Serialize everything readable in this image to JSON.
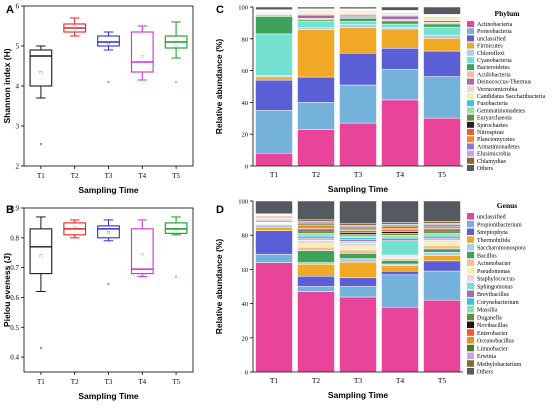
{
  "chart_data": [
    {
      "panel": "A",
      "type": "box",
      "xlabel": "Sampling Time",
      "ylabel": "Shannon index (H)",
      "ylim": [
        2,
        6
      ],
      "yticks": [
        "2",
        "3",
        "4",
        "5",
        "6"
      ],
      "categories": [
        "T1",
        "T2",
        "T3",
        "T4",
        "T5"
      ],
      "colors": [
        "#1a1a1a",
        "#e8221e",
        "#2b2fd6",
        "#d62ad6",
        "#169a26"
      ],
      "boxes": [
        {
          "min": 3.7,
          "q1": 4.0,
          "median": 4.75,
          "q3": 4.9,
          "max": 5.0,
          "mean": 4.35,
          "outliers": [
            2.55
          ]
        },
        {
          "min": 5.25,
          "q1": 5.35,
          "median": 5.45,
          "q3": 5.55,
          "max": 5.7,
          "mean": 5.5,
          "outliers": []
        },
        {
          "min": 4.9,
          "q1": 5.0,
          "median": 5.1,
          "q3": 5.25,
          "max": 5.35,
          "mean": 5.05,
          "outliers": [
            4.1
          ]
        },
        {
          "min": 4.15,
          "q1": 4.35,
          "median": 4.6,
          "q3": 5.35,
          "max": 5.5,
          "mean": 4.75,
          "outliers": []
        },
        {
          "min": 4.7,
          "q1": 4.95,
          "median": 5.1,
          "q3": 5.25,
          "max": 5.6,
          "mean": 5.0,
          "outliers": [
            4.1
          ]
        }
      ]
    },
    {
      "panel": "B",
      "type": "box",
      "xlabel": "Sampling Time",
      "ylabel": "Pielou eveness (J)",
      "ylim": [
        0.35,
        0.9
      ],
      "yticks": [
        "0.4",
        "0.5",
        "0.6",
        "0.7",
        "0.8",
        "0.9"
      ],
      "ytick_values": [
        0.4,
        0.5,
        0.6,
        0.7,
        0.8,
        0.9
      ],
      "categories": [
        "T1",
        "T2",
        "T3",
        "T4",
        "T5"
      ],
      "colors": [
        "#1a1a1a",
        "#e8221e",
        "#2b2fd6",
        "#d62ad6",
        "#169a26"
      ],
      "boxes": [
        {
          "min": 0.62,
          "q1": 0.68,
          "median": 0.77,
          "q3": 0.83,
          "max": 0.87,
          "mean": 0.74,
          "outliers": [
            0.43
          ]
        },
        {
          "min": 0.8,
          "q1": 0.81,
          "median": 0.83,
          "q3": 0.85,
          "max": 0.86,
          "mean": 0.835,
          "outliers": []
        },
        {
          "min": 0.79,
          "q1": 0.8,
          "median": 0.83,
          "q3": 0.84,
          "max": 0.86,
          "mean": 0.82,
          "outliers": [
            0.645
          ]
        },
        {
          "min": 0.67,
          "q1": 0.68,
          "median": 0.695,
          "q3": 0.83,
          "max": 0.86,
          "mean": 0.745,
          "outliers": []
        },
        {
          "min": 0.81,
          "q1": 0.815,
          "median": 0.83,
          "q3": 0.85,
          "max": 0.87,
          "mean": 0.83,
          "outliers": [
            0.67
          ]
        }
      ]
    },
    {
      "panel": "C",
      "type": "stacked-bar",
      "xlabel": "Sampling Time",
      "ylabel": "Relative abundance (%)",
      "ylim": [
        0,
        100
      ],
      "yticks": [
        "0",
        "20",
        "40",
        "60",
        "80",
        "100"
      ],
      "legend_title": "Phylum",
      "categories": [
        "T1",
        "T2",
        "T3",
        "T4",
        "T5"
      ],
      "series": [
        {
          "name": "Actinobacteria",
          "color": "#e8449a",
          "values": [
            8,
            23,
            27,
            41,
            30
          ]
        },
        {
          "name": "Proteobacteria",
          "color": "#74b2dc",
          "values": [
            27,
            17,
            24,
            19,
            26
          ]
        },
        {
          "name": "unclassified",
          "color": "#5b5fd6",
          "values": [
            19,
            16,
            20,
            13,
            16
          ]
        },
        {
          "name": "Firmicutes",
          "color": "#f0a826",
          "values": [
            2,
            30,
            16,
            12,
            8
          ]
        },
        {
          "name": "Chloroflexi",
          "color": "#a8d0ec",
          "values": [
            1,
            1,
            2,
            1,
            2
          ]
        },
        {
          "name": "Cyanobacteria",
          "color": "#74e0d0",
          "values": [
            26,
            4,
            2,
            2,
            5
          ]
        },
        {
          "name": "Bacteroidetes",
          "color": "#3ea35a",
          "values": [
            11,
            1,
            2,
            2,
            2
          ]
        },
        {
          "name": "Acidobacteria",
          "color": "#f7bc9d",
          "values": [
            1,
            1,
            1,
            1,
            1
          ]
        },
        {
          "name": "Deinococcus-Thermus",
          "color": "#a66aa8",
          "values": [
            0.5,
            2,
            1,
            2,
            1
          ]
        },
        {
          "name": "Verrucomicrobia",
          "color": "#f0d2e6",
          "values": [
            0.5,
            1,
            1,
            1,
            1
          ]
        },
        {
          "name": "Candidatus Saccharibacteria",
          "color": "#f7f1a3",
          "values": [
            0.5,
            1,
            1,
            0.5,
            1
          ]
        },
        {
          "name": "Fusobacteria",
          "color": "#3bc0e8",
          "values": [
            0.3,
            0.5,
            0.5,
            0.5,
            0.5
          ]
        },
        {
          "name": "Gemmatimonadetes",
          "color": "#8de0a6",
          "values": [
            0.3,
            0.3,
            0.3,
            0.3,
            0.3
          ]
        },
        {
          "name": "Euryarchaeota",
          "color": "#6a8a40",
          "values": [
            0.2,
            0.3,
            0.3,
            0.3,
            0.3
          ]
        },
        {
          "name": "Spirochaetes",
          "color": "#222222",
          "values": [
            0.2,
            0.2,
            0.2,
            0.2,
            0.2
          ]
        },
        {
          "name": "Nitrospirae",
          "color": "#ee5a3a",
          "values": [
            0.2,
            0.2,
            0.2,
            0.2,
            0.2
          ]
        },
        {
          "name": "Planctomycetes",
          "color": "#ee8a2a",
          "values": [
            0.2,
            0.2,
            0.2,
            0.2,
            0.2
          ]
        },
        {
          "name": "Armatimonadetes",
          "color": "#8a7ad4",
          "values": [
            0.1,
            0.1,
            0.1,
            0.1,
            0.1
          ]
        },
        {
          "name": "Elusimicrobia",
          "color": "#c4a6e4",
          "values": [
            0.1,
            0.1,
            0.1,
            0.1,
            0.1
          ]
        },
        {
          "name": "Chlamydiae",
          "color": "#8a6a2a",
          "values": [
            0.1,
            0.1,
            0.1,
            0.1,
            0.1
          ]
        },
        {
          "name": "Others",
          "color": "#555a60",
          "values": [
            1.7,
            1.1,
            1.1,
            2.1,
            4.6
          ]
        }
      ]
    },
    {
      "panel": "D",
      "type": "stacked-bar",
      "xlabel": "Sampling Time",
      "ylabel": "Relative abundance (%)",
      "ylim": [
        0,
        100
      ],
      "yticks": [
        "0",
        "20",
        "40",
        "60",
        "80",
        "100"
      ],
      "legend_title": "Genus",
      "categories": [
        "T1",
        "T2",
        "T3",
        "T4",
        "T5"
      ],
      "series": [
        {
          "name": "unclassified",
          "color": "#e8449a",
          "values": [
            65,
            47,
            43,
            36,
            42
          ]
        },
        {
          "name": "Propionibacterium",
          "color": "#74b2dc",
          "values": [
            5,
            3,
            6,
            18,
            17
          ]
        },
        {
          "name": "Streptophyta",
          "color": "#5b5fd6",
          "values": [
            14,
            6,
            5,
            2,
            6
          ]
        },
        {
          "name": "Thermobifida",
          "color": "#f0a826",
          "values": [
            2,
            7,
            9,
            3,
            3
          ]
        },
        {
          "name": "Saccharomonospora",
          "color": "#a8d0ec",
          "values": [
            1,
            1,
            2,
            1,
            2
          ]
        },
        {
          "name": "Bacillus",
          "color": "#3ea35a",
          "values": [
            0.5,
            7,
            3,
            2,
            2
          ]
        },
        {
          "name": "Acinetobacter",
          "color": "#f7bc9d",
          "values": [
            0.5,
            2,
            2,
            1,
            2
          ]
        },
        {
          "name": "Pseudomonas",
          "color": "#f7f1a3",
          "values": [
            0.5,
            2,
            2,
            1,
            2
          ]
        },
        {
          "name": "Staphylococcus",
          "color": "#f0d2e6",
          "values": [
            0.5,
            2,
            2,
            1,
            1
          ]
        },
        {
          "name": "Sphingomonas",
          "color": "#74e0d0",
          "values": [
            1,
            1,
            1,
            8,
            1
          ]
        },
        {
          "name": "Brevibacillus",
          "color": "#a66aa8",
          "values": [
            0.5,
            1,
            1,
            1,
            1
          ]
        },
        {
          "name": "Corynebacterium",
          "color": "#3bc0e8",
          "values": [
            0.5,
            1,
            1,
            1,
            1
          ]
        },
        {
          "name": "Massilia",
          "color": "#8de0a6",
          "values": [
            0.5,
            1,
            1,
            1,
            1
          ]
        },
        {
          "name": "Duganella",
          "color": "#6a8a40",
          "values": [
            0.5,
            1,
            1,
            1,
            1
          ]
        },
        {
          "name": "Novibacillus",
          "color": "#2a1010",
          "values": [
            0.3,
            1,
            1,
            1,
            1
          ]
        },
        {
          "name": "Enterobacter",
          "color": "#ee5a3a",
          "values": [
            0.5,
            1,
            1,
            1,
            1
          ]
        },
        {
          "name": "Oceanobacillus",
          "color": "#ee8a2a",
          "values": [
            0.3,
            2,
            1,
            1,
            1
          ]
        },
        {
          "name": "Limnobacter",
          "color": "#4a7a2a",
          "values": [
            0.3,
            1,
            1,
            1,
            1
          ]
        },
        {
          "name": "Erwinia",
          "color": "#c4a6e4",
          "values": [
            0.3,
            1,
            1,
            1,
            1
          ]
        },
        {
          "name": "Methylobacterium",
          "color": "#8a6a2a",
          "values": [
            0.3,
            1,
            1,
            1,
            1
          ]
        },
        {
          "name": "Others",
          "color": "#555a60",
          "values": [
            7.6,
            11,
            13,
            12,
            12
          ]
        }
      ]
    }
  ],
  "panel_labels": [
    "A",
    "B",
    "C",
    "D"
  ]
}
